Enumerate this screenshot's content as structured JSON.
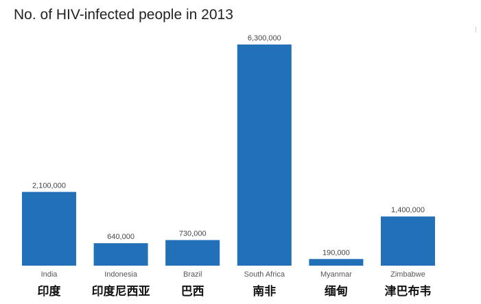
{
  "chart_data": {
    "type": "bar",
    "title": "No. of HIV-infected people in 2013",
    "xlabel": "",
    "ylabel": "",
    "categories": [
      "India",
      "Indonesia",
      "Brazil",
      "South Africa",
      "Myanmar",
      "Zimbabwe"
    ],
    "categories_chinese": [
      "印度",
      "印度尼西亚",
      "巴西",
      "南非",
      "缅甸",
      "津巴布韦"
    ],
    "values": [
      2100000,
      640000,
      730000,
      6300000,
      190000,
      1400000
    ],
    "value_labels": [
      "2,100,000",
      "640,000",
      "730,000",
      "6,300,000",
      "190,000",
      "1,400,000"
    ],
    "ylim": [
      0,
      6300000
    ],
    "grid": false,
    "legend": "none",
    "bar_color": "#2170b8"
  }
}
